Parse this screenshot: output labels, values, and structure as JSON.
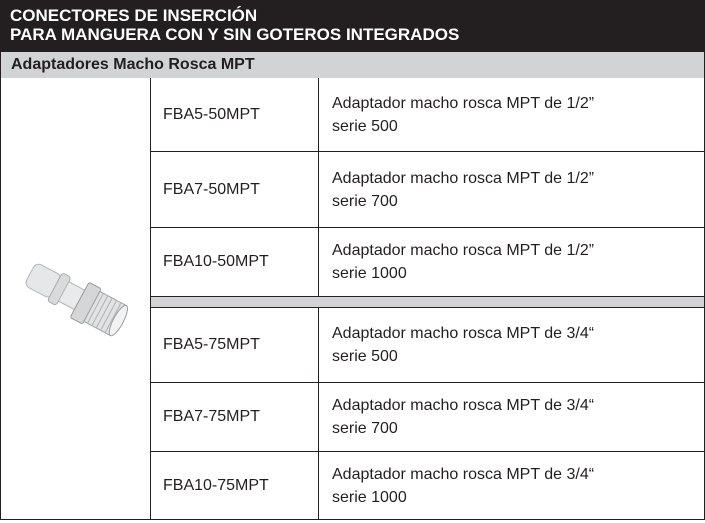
{
  "header": {
    "title_lines": [
      "CONECTORES DE INSERCIÓN",
      "PARA MANGUERA CON Y SIN GOTEROS INTEGRADOS"
    ],
    "subtitle": "Adaptadores Macho Rosca MPT"
  },
  "table": {
    "groups": [
      [
        {
          "code": "FBA5-50MPT",
          "description": [
            "Adaptador macho rosca MPT de 1/2”",
            "serie 500"
          ]
        },
        {
          "code": "FBA7-50MPT",
          "description": [
            "Adaptador macho rosca MPT de 1/2”",
            "serie 700"
          ]
        },
        {
          "code": "FBA10-50MPT",
          "description": [
            "Adaptador macho rosca MPT de 1/2”",
            "serie 1000"
          ]
        }
      ],
      [
        {
          "code": "FBA5-75MPT",
          "description": [
            "Adaptador macho rosca MPT de 3/4“",
            "serie 500"
          ]
        },
        {
          "code": "FBA7-75MPT",
          "description": [
            "Adaptador macho rosca MPT de 3/4“",
            "serie 700"
          ]
        },
        {
          "code": "FBA10-75MPT",
          "description": [
            "Adaptador macho rosca MPT de 3/4“",
            "serie 1000"
          ]
        }
      ]
    ]
  }
}
